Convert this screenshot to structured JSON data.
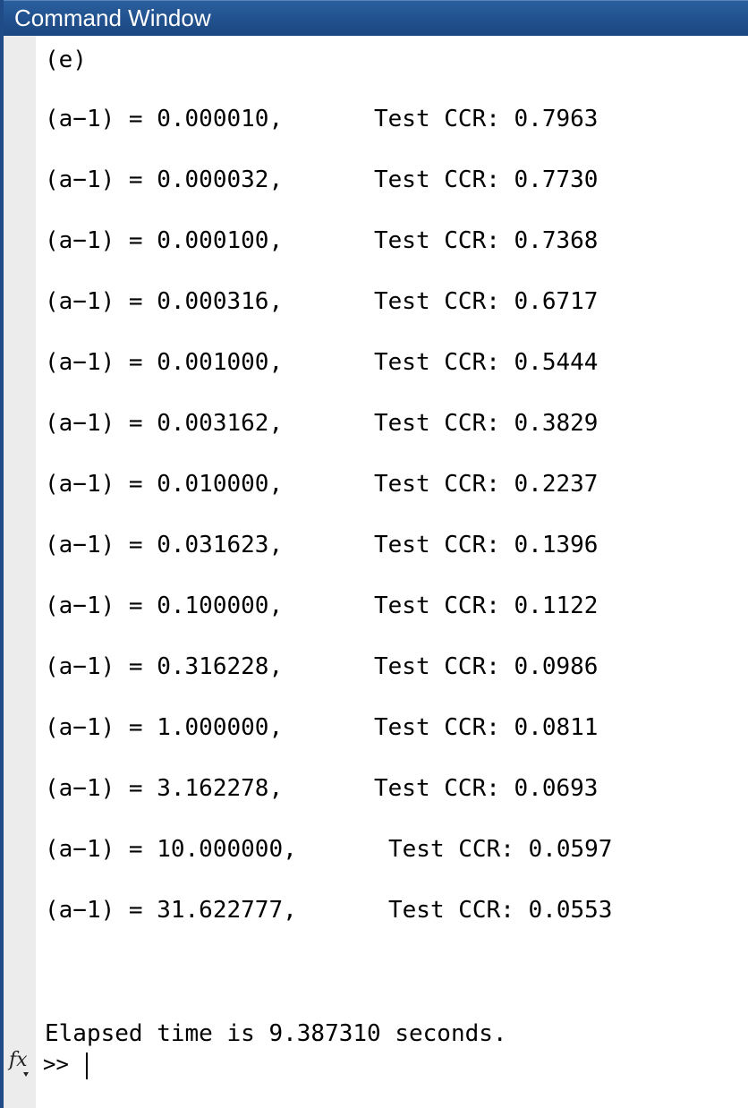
{
  "window": {
    "title": "Command Window"
  },
  "output": {
    "section_label": "(e)",
    "rows": [
      {
        "param": "(a−1) = 0.000010,",
        "result": "Test CCR: 0.7963"
      },
      {
        "param": "(a−1) = 0.000032,",
        "result": "Test CCR: 0.7730"
      },
      {
        "param": "(a−1) = 0.000100,",
        "result": "Test CCR: 0.7368"
      },
      {
        "param": "(a−1) = 0.000316,",
        "result": "Test CCR: 0.6717"
      },
      {
        "param": "(a−1) = 0.001000,",
        "result": "Test CCR: 0.5444"
      },
      {
        "param": "(a−1) = 0.003162,",
        "result": "Test CCR: 0.3829"
      },
      {
        "param": "(a−1) = 0.010000,",
        "result": "Test CCR: 0.2237"
      },
      {
        "param": "(a−1) = 0.031623,",
        "result": "Test CCR: 0.1396"
      },
      {
        "param": "(a−1) = 0.100000,",
        "result": "Test CCR: 0.1122"
      },
      {
        "param": "(a−1) = 0.316228,",
        "result": "Test CCR: 0.0986"
      },
      {
        "param": "(a−1) = 1.000000,",
        "result": "Test CCR: 0.0811"
      },
      {
        "param": "(a−1) = 3.162278,",
        "result": "Test CCR: 0.0693"
      },
      {
        "param": "(a−1) = 10.000000,",
        "result": "Test CCR: 0.0597"
      },
      {
        "param": "(a−1) = 31.622777,",
        "result": "Test CCR: 0.0553"
      }
    ],
    "elapsed": "Elapsed time is 9.387310 seconds."
  },
  "prompt": {
    "icon": "fx-icon",
    "symbol": ">>"
  },
  "colors": {
    "title_bar": "#1f4c86",
    "gutter": "#ececec",
    "text": "#000000"
  }
}
